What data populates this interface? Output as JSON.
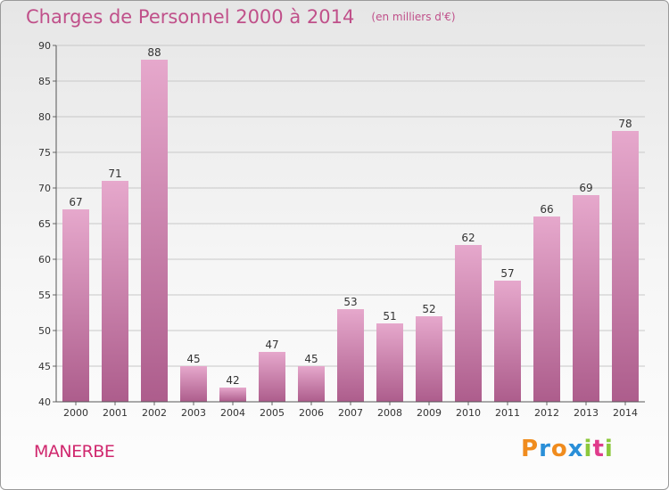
{
  "title": "Charges de Personnel 2000 à 2014",
  "subtitle": "(en milliers d'€)",
  "commune": "MANERBE",
  "logo": {
    "text": "Proxiti",
    "letters": [
      "P",
      "r",
      "o",
      "x",
      "i",
      "t",
      "i"
    ],
    "colors": [
      "#f08c1e",
      "#2a8fd8",
      "#f08c1e",
      "#2a8fd8",
      "#8cc83c",
      "#e03c8c",
      "#8cc83c"
    ]
  },
  "colors": {
    "title": "#c0508a",
    "bar_top": "#e6a8cc",
    "bar_bottom": "#ad5d8c",
    "grid": "#c8c8c8"
  },
  "chart_data": {
    "type": "bar",
    "categories": [
      "2000",
      "2001",
      "2002",
      "2003",
      "2004",
      "2005",
      "2006",
      "2007",
      "2008",
      "2009",
      "2010",
      "2011",
      "2012",
      "2013",
      "2014"
    ],
    "values": [
      67,
      71,
      88,
      45,
      42,
      47,
      45,
      53,
      51,
      52,
      62,
      57,
      66,
      69,
      78
    ],
    "ylim": [
      40,
      90
    ],
    "yticks": [
      40,
      45,
      50,
      55,
      60,
      65,
      70,
      75,
      80,
      85,
      90
    ],
    "grid": true,
    "data_labels": true
  }
}
